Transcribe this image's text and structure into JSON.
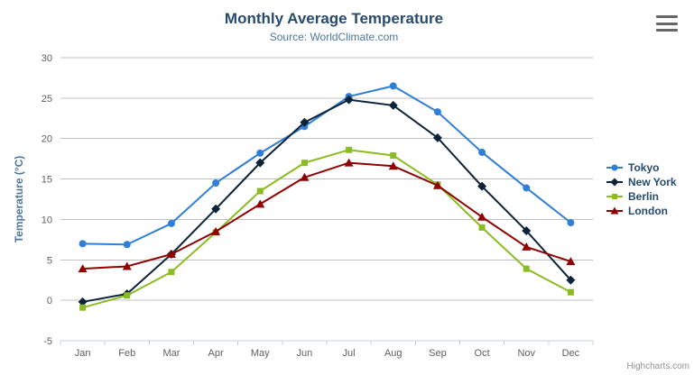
{
  "header": {
    "export_menu_icon": "hamburger-menu-icon"
  },
  "footer": {
    "credits": "Highcharts.com"
  },
  "chart_data": {
    "type": "line",
    "title": "Monthly Average Temperature",
    "subtitle": "Source: WorldClimate.com",
    "xlabel": "",
    "ylabel": "Temperature (°C)",
    "ylim": [
      -5,
      30
    ],
    "ytick_step": 5,
    "grid": true,
    "legend_position": "right",
    "categories": [
      "Jan",
      "Feb",
      "Mar",
      "Apr",
      "May",
      "Jun",
      "Jul",
      "Aug",
      "Sep",
      "Oct",
      "Nov",
      "Dec"
    ],
    "series": [
      {
        "name": "Tokyo",
        "color": "#2f7ed8",
        "marker": "circle",
        "values": [
          7.0,
          6.9,
          9.5,
          14.5,
          18.2,
          21.5,
          25.2,
          26.5,
          23.3,
          18.3,
          13.9,
          9.6
        ]
      },
      {
        "name": "New York",
        "color": "#0d233a",
        "marker": "diamond",
        "values": [
          -0.2,
          0.8,
          5.7,
          11.3,
          17.0,
          22.0,
          24.8,
          24.1,
          20.1,
          14.1,
          8.6,
          2.5
        ]
      },
      {
        "name": "Berlin",
        "color": "#8bbc21",
        "marker": "square",
        "values": [
          -0.9,
          0.6,
          3.5,
          8.4,
          13.5,
          17.0,
          18.6,
          17.9,
          14.3,
          9.0,
          3.9,
          1.0
        ]
      },
      {
        "name": "London",
        "color": "#910000",
        "marker": "triangle",
        "values": [
          3.9,
          4.2,
          5.7,
          8.5,
          11.9,
          15.2,
          17.0,
          16.6,
          14.2,
          10.3,
          6.6,
          4.8
        ]
      }
    ],
    "colors": {
      "grid": "#c0c0c0",
      "axis_line": "#c0d0e0",
      "axis_label": "#606060",
      "title": "#274b6d",
      "subtitle": "#4d759e",
      "legend_text": "#274b6d",
      "credits": "#909090"
    }
  }
}
